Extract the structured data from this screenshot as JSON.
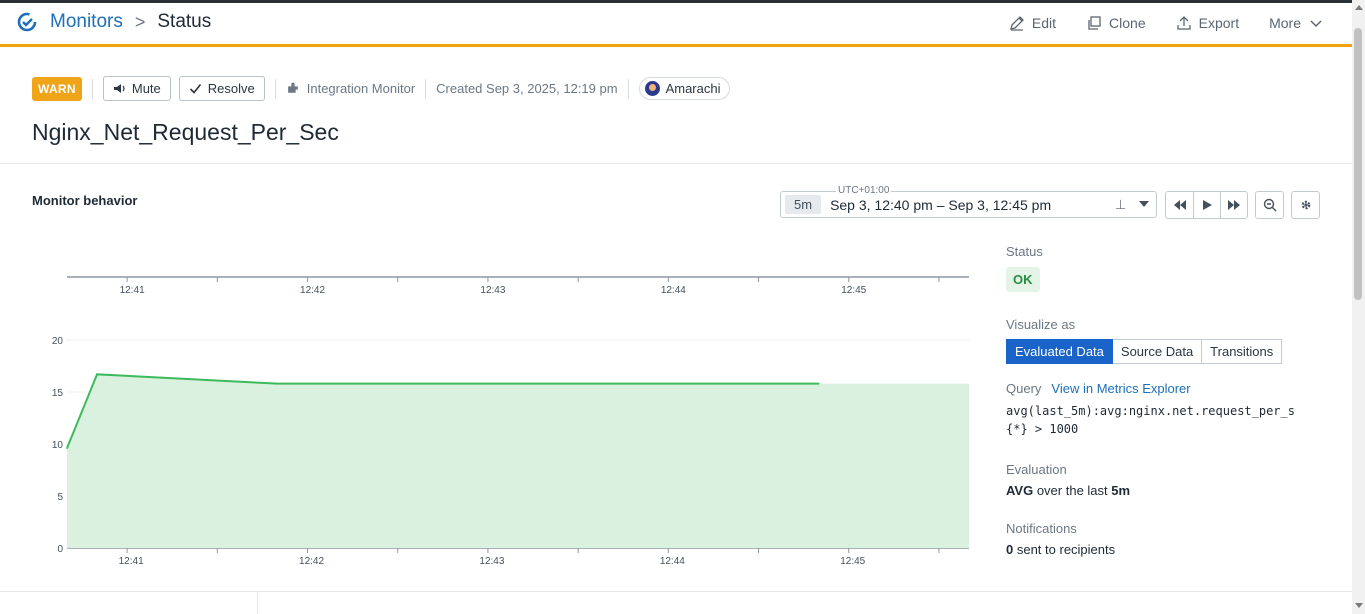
{
  "breadcrumb": {
    "root": "Monitors",
    "separator": ">",
    "current": "Status"
  },
  "actions": {
    "edit": "Edit",
    "clone": "Clone",
    "export": "Export",
    "more": "More"
  },
  "monitor": {
    "state_badge": "WARN",
    "mute_label": "Mute",
    "resolve_label": "Resolve",
    "type": "Integration Monitor",
    "created": "Created Sep 3, 2025, 12:19 pm",
    "owner": "Amarachi",
    "title": "Nginx_Net_Request_Per_Sec"
  },
  "behavior": {
    "section_title": "Monitor behavior",
    "timezone": "UTC+01:00",
    "span": "5m",
    "range": "Sep 3, 12:40 pm – Sep 3, 12:45 pm"
  },
  "side": {
    "status_label": "Status",
    "status_value": "OK",
    "visualize_label": "Visualize as",
    "visualize_options": [
      "Evaluated Data",
      "Source Data",
      "Transitions"
    ],
    "query_label": "Query",
    "query_link": "View in Metrics Explorer",
    "query_code": "avg(last_5m):avg:nginx.net.request_per_s{*} > 1000",
    "evaluation_label": "Evaluation",
    "evaluation_agg": "AVG",
    "evaluation_mid": " over the last ",
    "evaluation_window": "5m",
    "notifications_label": "Notifications",
    "notifications_count": "0",
    "notifications_text": " sent to recipients"
  },
  "colors": {
    "accent": "#f2a20c",
    "warn": "#f0a418",
    "ok_bg": "#e4f5e8",
    "ok_text": "#2a8c44",
    "series": "#3dba5c",
    "series_fill": "#dbf1e0",
    "primary": "#1a63c8"
  },
  "chart_data": {
    "type": "area",
    "x": [
      "12:40:40",
      "12:40:50",
      "12:41:50",
      "12:44:50"
    ],
    "xticks": [
      "12:41",
      "12:42",
      "12:43",
      "12:44",
      "12:45"
    ],
    "yticks": [
      0,
      5,
      10,
      15,
      20
    ],
    "ylim": [
      0,
      20
    ],
    "series": [
      {
        "values": [
          9.6,
          16.7,
          15.8,
          15.8
        ]
      }
    ],
    "fill_to_end": true,
    "grid": true
  }
}
